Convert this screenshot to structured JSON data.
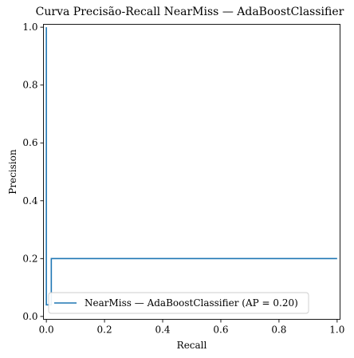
{
  "chart_data": {
    "type": "line",
    "title": "Curva Precisão-Recall NearMiss — AdaBoostClassifier",
    "xlabel": "Recall",
    "ylabel": "Precision",
    "xlim": [
      -0.01,
      1.01
    ],
    "ylim": [
      -0.01,
      1.01
    ],
    "xticks": [
      0.0,
      0.2,
      0.4,
      0.6,
      0.8,
      1.0
    ],
    "xtick_labels": [
      "0.0",
      "0.2",
      "0.4",
      "0.6",
      "0.8",
      "1.0"
    ],
    "yticks": [
      0.0,
      0.2,
      0.4,
      0.6,
      0.8,
      1.0
    ],
    "ytick_labels": [
      "0.0",
      "0.2",
      "0.4",
      "0.6",
      "0.8",
      "1.0"
    ],
    "grid": false,
    "legend": {
      "position": "lower-center"
    },
    "series": [
      {
        "name": "NearMiss — AdaBoostClassifier (AP = 0.20)",
        "color": "#1f77b4",
        "drawstyle": "steps-post",
        "x": [
          1.0,
          0.017,
          0.017,
          0.0,
          0.0
        ],
        "y": [
          0.2,
          0.2,
          0.04,
          0.04,
          1.0
        ]
      }
    ]
  }
}
